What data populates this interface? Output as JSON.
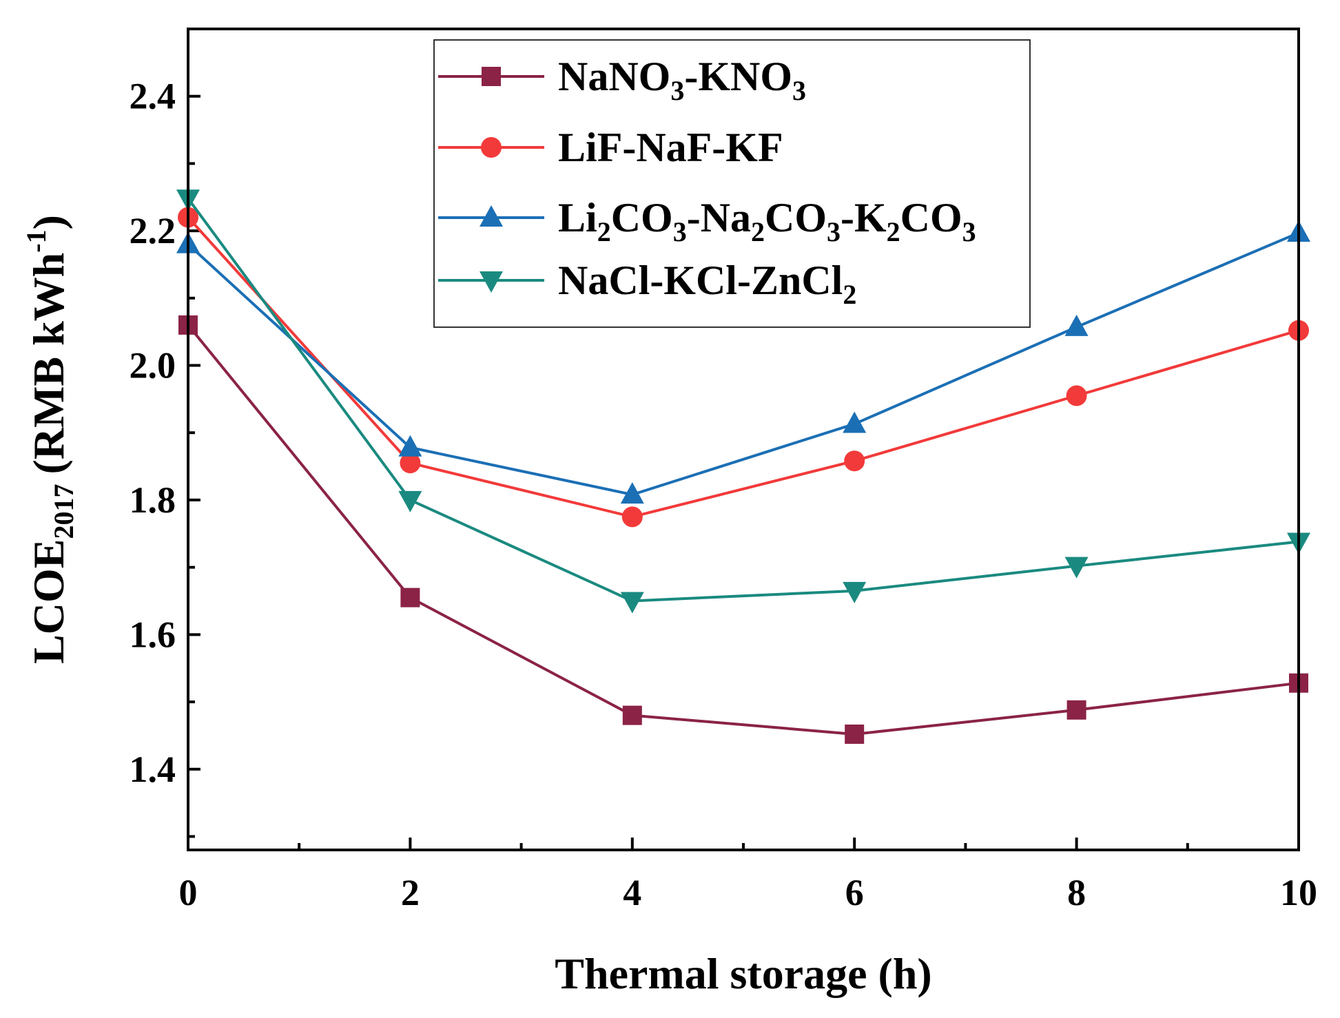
{
  "chart_data": {
    "type": "line",
    "xlabel": "Thermal storage (h)",
    "ylabel": {
      "main": "LCOE",
      "sub": "2017",
      "unit": "(RMB kWh",
      "unit_sup": "-1",
      "unit_close": ")"
    },
    "xlim": [
      0,
      10
    ],
    "ylim": [
      1.28,
      2.5
    ],
    "x_ticks": [
      0,
      2,
      4,
      6,
      8,
      10
    ],
    "x_tick_labels": [
      "0",
      "2",
      "4",
      "6",
      "8",
      "10"
    ],
    "x_minor_ticks": [
      1,
      3,
      5,
      7,
      9
    ],
    "y_ticks": [
      1.4,
      1.6,
      1.8,
      2.0,
      2.2,
      2.4
    ],
    "y_tick_labels": [
      "1.4",
      "1.6",
      "1.8",
      "2.0",
      "2.2",
      "2.4"
    ],
    "y_minor_ticks": [
      1.3,
      1.5,
      1.7,
      1.9,
      2.1,
      2.3,
      2.5
    ],
    "legend_position": "top-center",
    "x": [
      0,
      2,
      4,
      6,
      8,
      10
    ],
    "series": [
      {
        "name": "NaNO3-KNO3",
        "label_parts": [
          [
            "NaNO",
            ""
          ],
          [
            "3",
            "sub"
          ],
          [
            "-KNO",
            ""
          ],
          [
            "3",
            "sub"
          ]
        ],
        "color": "#8b2346",
        "marker": "square",
        "values": [
          2.06,
          1.655,
          1.48,
          1.452,
          1.488,
          1.528
        ]
      },
      {
        "name": "LiF-NaF-KF",
        "label_parts": [
          [
            "LiF-NaF-KF",
            ""
          ]
        ],
        "color": "#f23a3a",
        "marker": "circle",
        "values": [
          2.22,
          1.855,
          1.775,
          1.858,
          1.955,
          2.052
        ]
      },
      {
        "name": "Li2CO3-Na2CO3-K2CO3",
        "label_parts": [
          [
            "Li",
            ""
          ],
          [
            "2",
            "sub"
          ],
          [
            "CO",
            ""
          ],
          [
            "3",
            "sub"
          ],
          [
            "-Na",
            ""
          ],
          [
            "2",
            "sub"
          ],
          [
            "CO",
            ""
          ],
          [
            "3",
            "sub"
          ],
          [
            "-K",
            ""
          ],
          [
            "2",
            "sub"
          ],
          [
            "CO",
            ""
          ],
          [
            "3",
            "sub"
          ]
        ],
        "color": "#1b6fb5",
        "marker": "triangle-up",
        "values": [
          2.18,
          1.878,
          1.808,
          1.913,
          2.057,
          2.197
        ]
      },
      {
        "name": "NaCl-KCl-ZnCl2",
        "label_parts": [
          [
            "NaCl-KCl-ZnCl",
            ""
          ],
          [
            "2",
            "sub"
          ]
        ],
        "color": "#1a8a80",
        "marker": "triangle-down",
        "values": [
          2.248,
          1.8,
          1.65,
          1.665,
          1.702,
          1.738
        ]
      }
    ]
  }
}
